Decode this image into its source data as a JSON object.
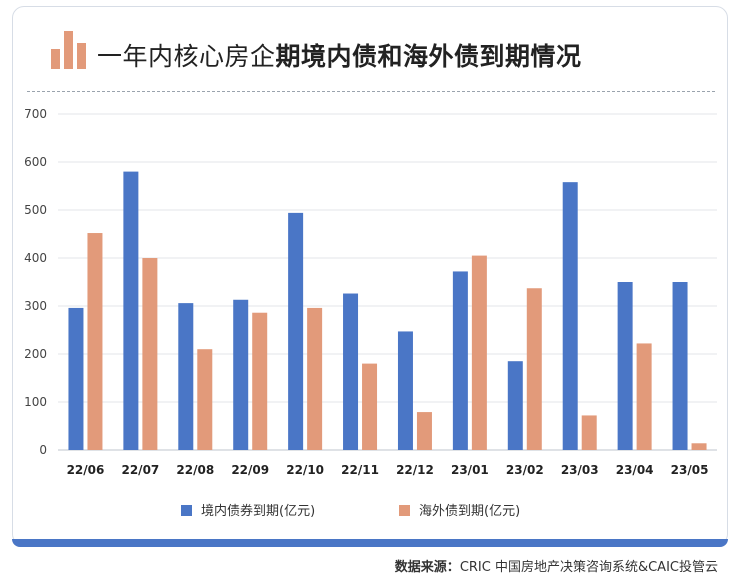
{
  "title_light": "一年内核心房企",
  "title_bold": "期境内债和海外债到期情况",
  "source_label": "数据来源：",
  "source_text": "CRIC 中国房地产决策咨询系统&CAIC投管云",
  "colors": {
    "domestic": "#4a76c6",
    "overseas": "#e29a7a",
    "icon": "#e29a7a"
  },
  "chart_data": {
    "type": "bar",
    "categories": [
      "22/06",
      "22/07",
      "22/08",
      "22/09",
      "22/10",
      "22/11",
      "22/12",
      "23/01",
      "23/02",
      "23/03",
      "23/04",
      "23/05"
    ],
    "series": [
      {
        "name": "境内债券到期(亿元)",
        "values": [
          296,
          580,
          306,
          313,
          494,
          326,
          247,
          372,
          185,
          558,
          350,
          350
        ]
      },
      {
        "name": "海外债到期(亿元)",
        "values": [
          452,
          400,
          210,
          286,
          296,
          180,
          79,
          405,
          337,
          72,
          222,
          14
        ]
      }
    ],
    "yticks": [
      0,
      100,
      200,
      300,
      400,
      500,
      600,
      700
    ],
    "ylim": [
      0,
      700
    ],
    "grid": true,
    "legend": "bottom"
  }
}
